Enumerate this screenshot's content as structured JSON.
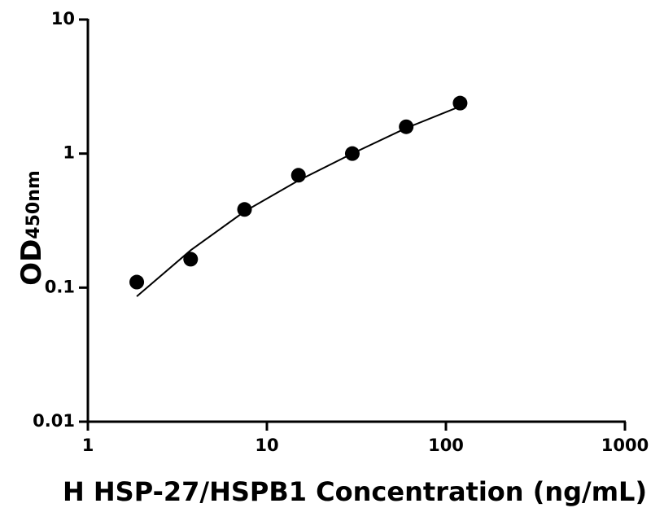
{
  "chart_data": {
    "type": "scatter",
    "x_label": "H HSP-27/HSPB1 Concentration (ng/mL)",
    "y_label": "OD",
    "y_label_sub": "450nm",
    "xscale": "log",
    "yscale": "log",
    "xlim": [
      1,
      1000
    ],
    "xticks": [
      1,
      10,
      100,
      1000
    ],
    "ylim": [
      0.01,
      10
    ],
    "yticks": [
      0.01,
      0.1,
      1,
      10
    ],
    "series": [
      {
        "type": "scatter",
        "color": "#000000",
        "x": [
          1.875,
          3.75,
          7.5,
          15,
          30,
          60,
          120
        ],
        "values": [
          0.11,
          0.163,
          0.383,
          0.689,
          1.0,
          1.585,
          2.38
        ]
      },
      {
        "type": "line",
        "color": "#000000",
        "x": [
          1.875,
          3.75,
          7.5,
          15,
          30,
          60,
          120
        ],
        "values": [
          0.086,
          0.19,
          0.37,
          0.63,
          1.0,
          1.55,
          2.25
        ]
      }
    ]
  }
}
